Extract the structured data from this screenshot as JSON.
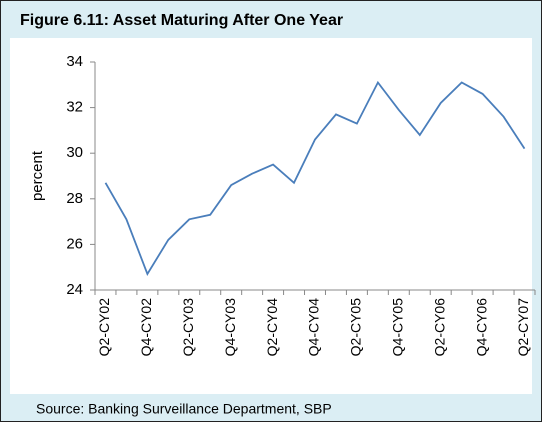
{
  "chart_data": {
    "type": "line",
    "title": "Figure 6.11: Asset Maturing After One Year",
    "y_label": "percent",
    "source": "Source: Banking Surveillance Department, SBP",
    "categories": [
      "Q2-CY02",
      null,
      "Q4-CY02",
      null,
      "Q2-CY03",
      null,
      "Q4-CY03",
      null,
      "Q2-CY04",
      null,
      "Q4-CY04",
      null,
      "Q2-CY05",
      null,
      "Q4-CY05",
      null,
      "Q2-CY06",
      null,
      "Q4-CY06",
      null,
      "Q2-CY07"
    ],
    "series": [
      {
        "name": "Asset Maturing After One Year",
        "color": "#4a7ebb",
        "values": [
          28.7,
          27.1,
          24.7,
          26.2,
          27.1,
          27.3,
          28.6,
          29.1,
          29.5,
          28.7,
          30.6,
          31.7,
          31.3,
          33.1,
          31.9,
          30.8,
          32.2,
          33.1,
          32.6,
          31.6,
          30.2
        ]
      }
    ],
    "ylim": [
      24,
      34
    ],
    "yticks": [
      24,
      26,
      28,
      30,
      32,
      34
    ],
    "grid": false
  }
}
